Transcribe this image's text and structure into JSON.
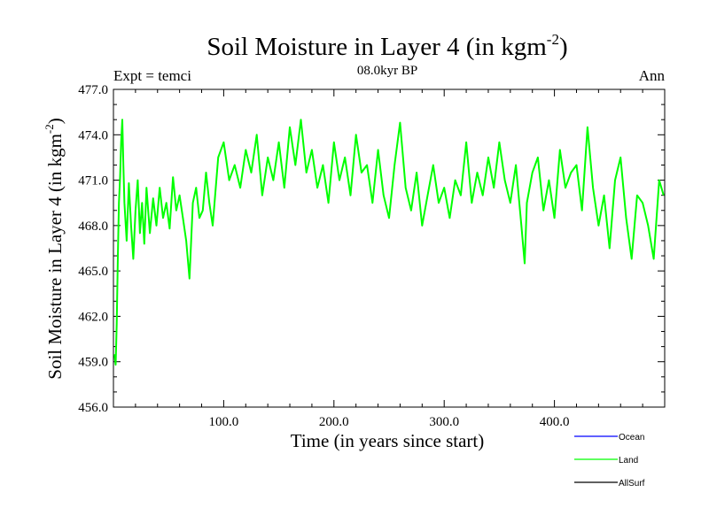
{
  "chart_data": {
    "type": "line",
    "title": "Soil Moisture in Layer 4 (in kgm",
    "title_sup": "-2",
    "title_close": ")",
    "subtitle_left": "Expt = temci",
    "subtitle_center": "08.0kyr BP",
    "subtitle_right": "Ann",
    "xlabel": "Time (in years since start)",
    "ylabel": "Soil Moisture in Layer 4 (in kgm",
    "ylabel_sup": "-2",
    "ylabel_close": ")",
    "xlim": [
      0,
      500
    ],
    "ylim": [
      456,
      477
    ],
    "x_ticks": [
      100,
      200,
      300,
      400
    ],
    "x_tick_labels": [
      "100.0",
      "200.0",
      "300.0",
      "400.0"
    ],
    "y_ticks": [
      456,
      459,
      462,
      465,
      468,
      471,
      474,
      477
    ],
    "y_tick_labels": [
      "456.0",
      "459.0",
      "462.0",
      "465.0",
      "468.0",
      "471.0",
      "474.0",
      "477.0"
    ],
    "series": [
      {
        "name": "Ocean",
        "color": "#0000ff",
        "x": [],
        "values": []
      },
      {
        "name": "Land",
        "color": "#00ff00",
        "x": [
          1,
          2,
          3,
          4,
          5,
          6,
          7,
          8,
          9,
          10,
          12,
          14,
          16,
          18,
          20,
          22,
          24,
          26,
          28,
          30,
          33,
          36,
          39,
          42,
          45,
          48,
          51,
          54,
          57,
          60,
          63,
          66,
          69,
          72,
          75,
          78,
          81,
          84,
          87,
          90,
          95,
          100,
          105,
          110,
          115,
          120,
          125,
          130,
          135,
          140,
          145,
          150,
          155,
          160,
          165,
          170,
          175,
          180,
          185,
          190,
          195,
          200,
          205,
          210,
          215,
          220,
          225,
          230,
          235,
          240,
          245,
          250,
          255,
          260,
          265,
          270,
          275,
          280,
          285,
          290,
          295,
          300,
          305,
          310,
          315,
          320,
          325,
          330,
          335,
          340,
          345,
          350,
          355,
          360,
          365,
          370,
          373,
          375,
          380,
          385,
          390,
          395,
          400,
          405,
          410,
          415,
          420,
          425,
          430,
          435,
          440,
          445,
          450,
          455,
          460,
          465,
          470,
          475,
          480,
          485,
          490,
          495,
          499
        ],
        "values": [
          459.5,
          458.8,
          461.5,
          466.0,
          469.5,
          471.2,
          473.5,
          475.0,
          472.0,
          469.5,
          467.0,
          470.8,
          468.0,
          465.8,
          469.0,
          471.0,
          467.5,
          469.5,
          466.8,
          470.5,
          467.5,
          469.8,
          468.0,
          470.5,
          468.5,
          469.5,
          467.8,
          471.2,
          469.0,
          470.0,
          468.5,
          467.0,
          464.5,
          469.5,
          470.5,
          468.5,
          469.0,
          471.5,
          469.5,
          468.0,
          472.5,
          473.5,
          471.0,
          472.0,
          470.5,
          473.0,
          471.5,
          474.0,
          470.0,
          472.5,
          471.0,
          473.5,
          470.5,
          474.5,
          472.0,
          475.0,
          471.5,
          473.0,
          470.5,
          472.0,
          469.5,
          473.5,
          471.0,
          472.5,
          470.0,
          474.0,
          471.5,
          472.0,
          469.5,
          473.0,
          470.0,
          468.5,
          472.0,
          474.8,
          470.5,
          469.0,
          471.5,
          468.0,
          470.0,
          472.0,
          469.5,
          470.5,
          468.5,
          471.0,
          470.0,
          473.5,
          469.5,
          471.5,
          470.0,
          472.5,
          470.5,
          473.5,
          471.0,
          469.5,
          472.0,
          468.0,
          465.5,
          469.5,
          471.5,
          472.5,
          469.0,
          471.0,
          468.5,
          473.0,
          470.5,
          471.5,
          472.0,
          469.0,
          474.5,
          470.5,
          468.0,
          470.0,
          466.5,
          471.0,
          472.5,
          468.5,
          465.8,
          470.0,
          469.5,
          468.0,
          465.8,
          471.0,
          470.0
        ]
      },
      {
        "name": "AllSurf",
        "color": "#000000",
        "x": [],
        "values": []
      }
    ],
    "legend_position": "bottom-right",
    "grid": false
  }
}
